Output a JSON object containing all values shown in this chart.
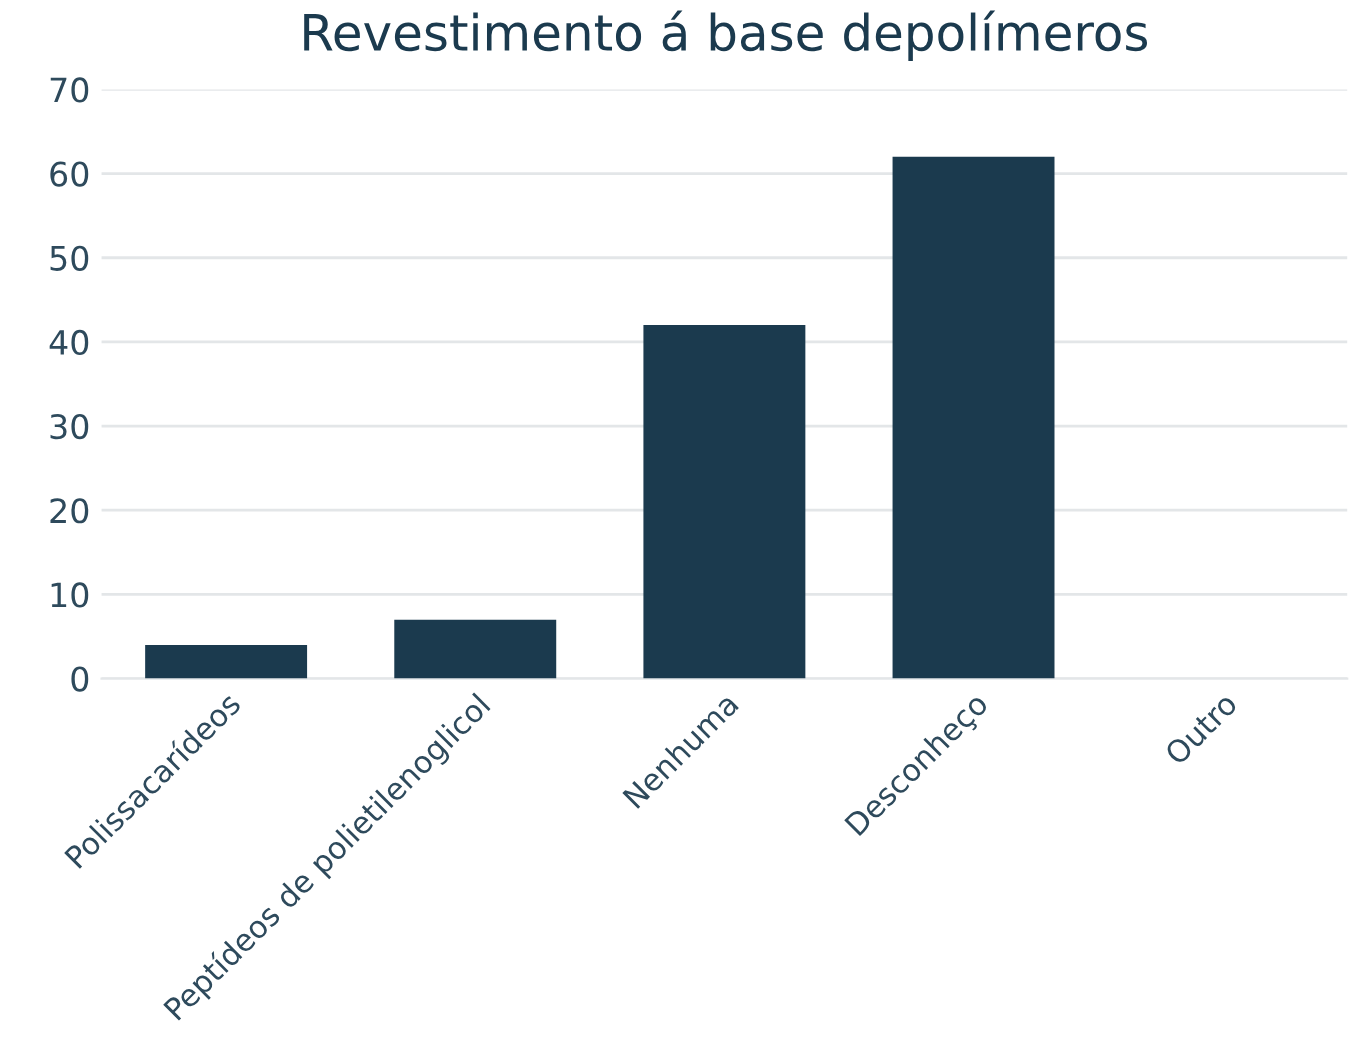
{
  "chart_data": {
    "type": "bar",
    "title": "Revestimento á base depolímeros",
    "categories": [
      "Polissacarídeos",
      "Peptídeos de polietilenoglicol",
      "Nenhuma",
      "Desconheço",
      "Outro"
    ],
    "values": [
      4,
      7,
      42,
      62,
      0
    ],
    "color": "#1b3a4e",
    "ylim": [
      0,
      70
    ],
    "yticks": [
      0,
      10,
      20,
      30,
      40,
      50,
      60,
      70
    ],
    "grid": "y"
  }
}
